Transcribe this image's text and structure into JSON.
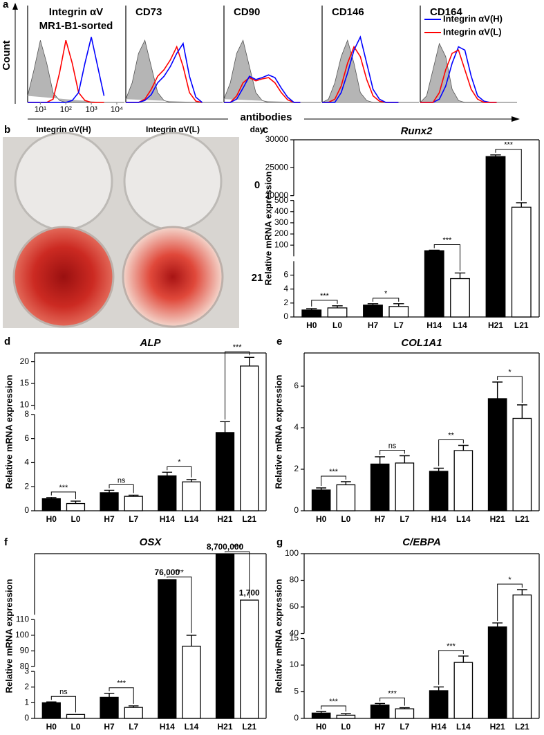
{
  "image_panel": {
    "panel": "b",
    "columns": [
      "Integrin αV(H)",
      "Integrin αV(L)"
    ],
    "row_title": "day",
    "rows": [
      "0",
      "21"
    ]
  },
  "chart_data": [
    {
      "type": "histogram-overlay",
      "panel": "a",
      "title": "Integrin αV",
      "subtitle": "MR1-B1-sorted",
      "ylabel": "Count",
      "xlabel": "antibodies",
      "x": [
        0.5,
        0.75,
        1,
        1.25,
        1.5,
        1.75,
        2,
        2.25,
        2.5,
        2.75,
        3,
        3.25,
        3.5
      ],
      "xlim": [
        0.5,
        4.3
      ],
      "ylim": [
        0,
        110
      ],
      "xticks": [
        {
          "value": 1,
          "label": "10¹"
        },
        {
          "value": 2,
          "label": "10²"
        },
        {
          "value": 3,
          "label": "10³"
        },
        {
          "value": 4,
          "label": "10⁴"
        }
      ],
      "series": [
        {
          "color": "#b5b5b5",
          "values": [
            10,
            50,
            95,
            60,
            15,
            3,
            0,
            0,
            0,
            0,
            0,
            0,
            0
          ]
        },
        {
          "name": "Integrin αV(L)",
          "color": "#ff0000",
          "values": [
            0,
            0,
            0,
            0,
            5,
            45,
            95,
            60,
            15,
            3,
            0,
            0,
            0
          ]
        },
        {
          "name": "Integrin αV(H)",
          "color": "#0000ff",
          "values": [
            0,
            0,
            0,
            0,
            0,
            0,
            0,
            3,
            15,
            60,
            100,
            55,
            10
          ]
        }
      ]
    },
    {
      "type": "histogram-overlay",
      "title": "CD73",
      "x": [
        0.5,
        0.75,
        1,
        1.25,
        1.5,
        1.75,
        2,
        2.25,
        2.5,
        2.75,
        3,
        3.25,
        3.5
      ],
      "xlim": [
        0.5,
        4.3
      ],
      "ylim": [
        0,
        110
      ],
      "series": [
        {
          "color": "#b5b5b5",
          "values": [
            5,
            30,
            75,
            95,
            55,
            15,
            3,
            0,
            0,
            0,
            0,
            0,
            0
          ]
        },
        {
          "name": "Integrin αV(L)",
          "color": "#ff0000",
          "values": [
            0,
            0,
            0,
            5,
            20,
            40,
            50,
            65,
            85,
            55,
            15,
            2,
            0
          ]
        },
        {
          "name": "Integrin αV(H)",
          "color": "#0000ff",
          "values": [
            0,
            0,
            0,
            3,
            12,
            30,
            40,
            55,
            75,
            90,
            40,
            8,
            0
          ]
        }
      ]
    },
    {
      "type": "histogram-overlay",
      "title": "CD90",
      "x": [
        0.5,
        0.75,
        1,
        1.25,
        1.5,
        1.75,
        2,
        2.25,
        2.5,
        2.75,
        3,
        3.25,
        3.5
      ],
      "xlim": [
        0.5,
        4.3
      ],
      "ylim": [
        0,
        110
      ],
      "series": [
        {
          "color": "#b5b5b5",
          "values": [
            5,
            30,
            75,
            95,
            55,
            15,
            3,
            0,
            0,
            0,
            0,
            0,
            0
          ]
        },
        {
          "name": "Integrin αV(L)",
          "color": "#ff0000",
          "values": [
            0,
            0,
            10,
            30,
            38,
            33,
            36,
            38,
            30,
            15,
            4,
            0,
            0
          ]
        },
        {
          "name": "Integrin αV(H)",
          "color": "#0000ff",
          "values": [
            0,
            0,
            5,
            22,
            40,
            35,
            38,
            42,
            38,
            22,
            8,
            0,
            0
          ]
        }
      ]
    },
    {
      "type": "histogram-overlay",
      "title": "CD146",
      "x": [
        0.5,
        0.75,
        1,
        1.25,
        1.5,
        1.75,
        2,
        2.25,
        2.5,
        2.75,
        3,
        3.25,
        3.5
      ],
      "xlim": [
        0.5,
        4.3
      ],
      "ylim": [
        0,
        110
      ],
      "series": [
        {
          "color": "#b5b5b5",
          "values": [
            0,
            5,
            30,
            70,
            95,
            60,
            15,
            3,
            0,
            0,
            0,
            0,
            0
          ]
        },
        {
          "name": "Integrin αV(L)",
          "color": "#ff0000",
          "values": [
            0,
            0,
            5,
            25,
            60,
            85,
            70,
            35,
            10,
            2,
            0,
            0,
            0
          ]
        },
        {
          "name": "Integrin αV(H)",
          "color": "#0000ff",
          "values": [
            0,
            0,
            0,
            15,
            45,
            80,
            100,
            60,
            20,
            5,
            0,
            0,
            0
          ]
        }
      ]
    },
    {
      "type": "histogram-overlay",
      "title": "CD164",
      "legend": "upper right",
      "x": [
        0.5,
        0.75,
        1,
        1.25,
        1.5,
        1.75,
        2,
        2.25,
        2.5,
        2.75,
        3,
        3.25,
        3.5
      ],
      "xlim": [
        0.5,
        4.3
      ],
      "ylim": [
        0,
        110
      ],
      "series": [
        {
          "color": "#b5b5b5",
          "values": [
            0,
            10,
            50,
            90,
            70,
            20,
            3,
            0,
            0,
            0,
            0,
            0,
            0
          ]
        },
        {
          "name": "Integrin αV(H)",
          "color": "#0000ff",
          "values": [
            0,
            0,
            0,
            5,
            25,
            60,
            85,
            80,
            40,
            10,
            2,
            0,
            0
          ]
        },
        {
          "name": "Integrin αV(L)",
          "color": "#ff0000",
          "values": [
            0,
            0,
            0,
            15,
            50,
            75,
            80,
            50,
            20,
            5,
            0,
            0,
            0
          ]
        }
      ]
    },
    {
      "type": "broken-bar",
      "panel": "c",
      "title": "Runx2",
      "ylabel": "Relative mRNA expression",
      "categories": [
        "H0",
        "L0",
        "H7",
        "L7",
        "H14",
        "L14",
        "H21",
        "L21"
      ],
      "values": [
        1.0,
        1.3,
        1.7,
        1.5,
        50,
        5.5,
        27000,
        440
      ],
      "errors": [
        0.2,
        0.3,
        0.2,
        0.4,
        5,
        0.8,
        300,
        40
      ],
      "colors": [
        "#000000",
        "#ffffff",
        "#000000",
        "#ffffff",
        "#000000",
        "#ffffff",
        "#000000",
        "#ffffff"
      ],
      "significance": [
        "***",
        "*",
        "***",
        "***"
      ],
      "segments": [
        {
          "ylim": [
            0,
            8
          ],
          "yticks": [
            0,
            2,
            4,
            6
          ]
        },
        {
          "ylim": [
            0,
            500
          ],
          "yticks": [
            100,
            200,
            300,
            400,
            500
          ]
        },
        {
          "ylim": [
            20000,
            30000
          ],
          "yticks": [
            20000,
            25000,
            30000
          ]
        }
      ]
    },
    {
      "type": "broken-bar",
      "panel": "d",
      "title": "ALP",
      "ylabel": "Relative mRNA expression",
      "categories": [
        "H0",
        "L0",
        "H7",
        "L7",
        "H14",
        "L14",
        "H21",
        "L21"
      ],
      "values": [
        1.0,
        0.6,
        1.5,
        1.2,
        2.9,
        2.4,
        6.5,
        19
      ],
      "errors": [
        0.1,
        0.2,
        0.2,
        0.1,
        0.3,
        0.2,
        0.9,
        2
      ],
      "colors": [
        "#000000",
        "#ffffff",
        "#000000",
        "#ffffff",
        "#000000",
        "#ffffff",
        "#000000",
        "#ffffff"
      ],
      "significance": [
        "***",
        "ns",
        "*",
        "***"
      ],
      "segments": [
        {
          "ylim": [
            0,
            8
          ],
          "yticks": [
            0,
            2,
            4,
            6,
            8
          ]
        },
        {
          "ylim": [
            9,
            22
          ],
          "yticks": [
            10,
            15,
            20
          ]
        }
      ]
    },
    {
      "type": "broken-bar",
      "panel": "e",
      "title": "COL1A1",
      "ylabel": "Relative mRNA expression",
      "categories": [
        "H0",
        "L0",
        "H7",
        "L7",
        "H14",
        "L14",
        "H21",
        "L21"
      ],
      "values": [
        1.0,
        1.25,
        2.25,
        2.3,
        1.9,
        2.9,
        5.4,
        4.45
      ],
      "errors": [
        0.1,
        0.15,
        0.35,
        0.35,
        0.15,
        0.25,
        0.8,
        0.65
      ],
      "colors": [
        "#000000",
        "#ffffff",
        "#000000",
        "#ffffff",
        "#000000",
        "#ffffff",
        "#000000",
        "#ffffff"
      ],
      "significance": [
        "***",
        "ns",
        "**",
        "*"
      ],
      "segments": [
        {
          "ylim": [
            0,
            7.6
          ],
          "yticks": [
            0,
            2,
            4,
            6
          ]
        }
      ]
    },
    {
      "type": "broken-bar",
      "panel": "f",
      "title": "OSX",
      "ylabel": "Relative mRNA expression",
      "categories": [
        "H0",
        "L0",
        "H7",
        "L7",
        "H14",
        "L14",
        "H21",
        "L21"
      ],
      "values": [
        1.0,
        0.25,
        1.35,
        0.7,
        76000,
        93,
        8700000,
        1700
      ],
      "errors": [
        0.05,
        null,
        0.25,
        0.1,
        null,
        7,
        null,
        null
      ],
      "value_labels": [
        null,
        null,
        null,
        null,
        "76,000",
        null,
        "8,700,000",
        "1,700"
      ],
      "colors": [
        "#000000",
        "#ffffff",
        "#000000",
        "#ffffff",
        "#000000",
        "#ffffff",
        "#000000",
        "#ffffff"
      ],
      "significance": [
        "ns",
        "***",
        "***",
        "***"
      ],
      "segments": [
        {
          "ylim": [
            0,
            3
          ],
          "yticks": [
            0,
            1,
            2,
            3
          ]
        },
        {
          "ylim": [
            80,
            110
          ],
          "yticks": [
            80,
            90,
            100,
            110
          ]
        },
        {
          "ylim": [
            110,
            10000000
          ],
          "yticks": [],
          "log": true
        }
      ]
    },
    {
      "type": "broken-bar",
      "panel": "g",
      "title": "C/EBPA",
      "ylabel": "Relative mRNA expression",
      "categories": [
        "H0",
        "L0",
        "H7",
        "L7",
        "H14",
        "L14",
        "H21",
        "L21"
      ],
      "values": [
        1.0,
        0.6,
        2.5,
        1.8,
        5.2,
        10.5,
        45,
        69
      ],
      "errors": [
        0.3,
        0.3,
        0.3,
        0.2,
        0.7,
        1.2,
        3,
        4
      ],
      "colors": [
        "#000000",
        "#ffffff",
        "#000000",
        "#ffffff",
        "#000000",
        "#ffffff",
        "#000000",
        "#ffffff"
      ],
      "significance": [
        "***",
        "***",
        "***",
        "*"
      ],
      "segments": [
        {
          "ylim": [
            0,
            15
          ],
          "yticks": [
            0,
            5,
            10,
            15
          ]
        },
        {
          "ylim": [
            40,
            100
          ],
          "yticks": [
            40,
            60,
            80,
            100
          ]
        }
      ]
    }
  ]
}
